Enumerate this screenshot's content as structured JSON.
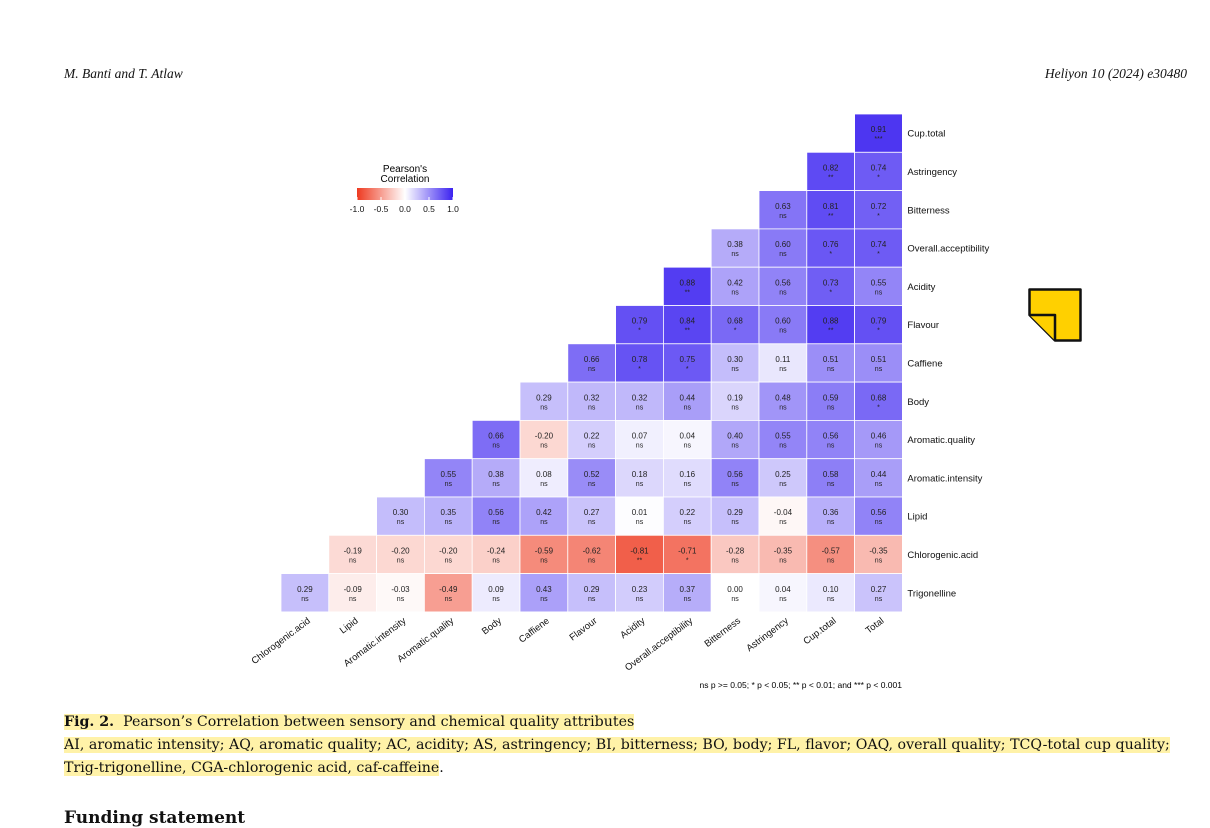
{
  "header": {
    "authors": "M. Banti and T. Atlaw",
    "journal": "Heliyon 10 (2024) e30480"
  },
  "figure": {
    "legend": {
      "title_line1": "Pearson's",
      "title_line2": "Correlation",
      "ticks": [
        "-1.0",
        "-0.5",
        "0.0",
        "0.5",
        "1.0"
      ]
    },
    "note": "ns p >= 0.05; * p < 0.05; ** p < 0.01; and *** p < 0.001",
    "sticky_note": "sticky-note-icon"
  },
  "chart_data": {
    "type": "heatmap",
    "row_labels": [
      "Cup.total",
      "Astringency",
      "Bitterness",
      "Overall.acceptibility",
      "Acidity",
      "Flavour",
      "Caffiene",
      "Body",
      "Aromatic.quality",
      "Aromatic.intensity",
      "Lipid",
      "Chlorogenic.acid",
      "Trigonelline"
    ],
    "col_labels": [
      "Chlorogenic.acid",
      "Lipid",
      "Aromatic.intensity",
      "Aromatic.quality",
      "Body",
      "Caffiene",
      "Flavour",
      "Acidity",
      "Overall.acceptibility",
      "Bitterness",
      "Astringency",
      "Cup.total",
      "Total"
    ],
    "color_scale": {
      "min": -1.0,
      "max": 1.0,
      "low_color": "#ee3a20",
      "mid_color": "#ffffff",
      "high_color": "#3b22f0"
    },
    "cells": [
      [
        [
          0.91,
          "***"
        ]
      ],
      [
        [
          0.82,
          "**"
        ],
        [
          0.74,
          "*"
        ]
      ],
      [
        [
          0.63,
          "ns"
        ],
        [
          0.81,
          "**"
        ],
        [
          0.72,
          "*"
        ]
      ],
      [
        [
          0.38,
          "ns"
        ],
        [
          0.6,
          "ns"
        ],
        [
          0.76,
          "*"
        ],
        [
          0.74,
          "*"
        ]
      ],
      [
        [
          0.88,
          "**"
        ],
        [
          0.42,
          "ns"
        ],
        [
          0.56,
          "ns"
        ],
        [
          0.73,
          "*"
        ],
        [
          0.55,
          "ns"
        ]
      ],
      [
        [
          0.79,
          "*"
        ],
        [
          0.84,
          "**"
        ],
        [
          0.68,
          "*"
        ],
        [
          0.6,
          "ns"
        ],
        [
          0.88,
          "**"
        ],
        [
          0.79,
          "*"
        ]
      ],
      [
        [
          0.66,
          "ns"
        ],
        [
          0.78,
          "*"
        ],
        [
          0.75,
          "*"
        ],
        [
          0.3,
          "ns"
        ],
        [
          0.11,
          "ns"
        ],
        [
          0.51,
          "ns"
        ],
        [
          0.51,
          "ns"
        ]
      ],
      [
        [
          0.29,
          "ns"
        ],
        [
          0.32,
          "ns"
        ],
        [
          0.32,
          "ns"
        ],
        [
          0.44,
          "ns"
        ],
        [
          0.19,
          "ns"
        ],
        [
          0.48,
          "ns"
        ],
        [
          0.59,
          "ns"
        ],
        [
          0.68,
          "*"
        ]
      ],
      [
        [
          0.66,
          "ns"
        ],
        [
          -0.2,
          "ns"
        ],
        [
          0.22,
          "ns"
        ],
        [
          0.07,
          "ns"
        ],
        [
          0.04,
          "ns"
        ],
        [
          0.4,
          "ns"
        ],
        [
          0.55,
          "ns"
        ],
        [
          0.56,
          "ns"
        ],
        [
          0.46,
          "ns"
        ]
      ],
      [
        [
          0.55,
          "ns"
        ],
        [
          0.38,
          "ns"
        ],
        [
          0.08,
          "ns"
        ],
        [
          0.52,
          "ns"
        ],
        [
          0.18,
          "ns"
        ],
        [
          0.16,
          "ns"
        ],
        [
          0.56,
          "ns"
        ],
        [
          0.25,
          "ns"
        ],
        [
          0.58,
          "ns"
        ],
        [
          0.44,
          "ns"
        ]
      ],
      [
        [
          0.3,
          "ns"
        ],
        [
          0.35,
          "ns"
        ],
        [
          0.56,
          "ns"
        ],
        [
          0.42,
          "ns"
        ],
        [
          0.27,
          "ns"
        ],
        [
          0.01,
          "ns"
        ],
        [
          0.22,
          "ns"
        ],
        [
          0.29,
          "ns"
        ],
        [
          -0.04,
          "ns"
        ],
        [
          0.36,
          "ns"
        ],
        [
          0.56,
          "ns"
        ]
      ],
      [
        [
          -0.19,
          "ns"
        ],
        [
          -0.2,
          "ns"
        ],
        [
          -0.2,
          "ns"
        ],
        [
          -0.24,
          "ns"
        ],
        [
          -0.59,
          "ns"
        ],
        [
          -0.62,
          "ns"
        ],
        [
          -0.81,
          "**"
        ],
        [
          -0.71,
          "*"
        ],
        [
          -0.28,
          "ns"
        ],
        [
          -0.35,
          "ns"
        ],
        [
          -0.57,
          "ns"
        ],
        [
          -0.35,
          "ns"
        ]
      ],
      [
        [
          0.29,
          "ns"
        ],
        [
          -0.09,
          "ns"
        ],
        [
          -0.03,
          "ns"
        ],
        [
          -0.49,
          "ns"
        ],
        [
          0.09,
          "ns"
        ],
        [
          0.43,
          "ns"
        ],
        [
          0.29,
          "ns"
        ],
        [
          0.23,
          "ns"
        ],
        [
          0.37,
          "ns"
        ],
        [
          0.0,
          "ns"
        ],
        [
          0.04,
          "ns"
        ],
        [
          0.1,
          "ns"
        ],
        [
          0.27,
          "ns"
        ]
      ]
    ]
  },
  "caption": {
    "label": "Fig. 2.",
    "title": "Pearson’s Correlation between sensory and chemical quality attributes",
    "body": "AI, aromatic intensity; AQ, aromatic quality; AC, acidity; AS, astringency; BI, bitterness; BO, body; FL, flavor; OAQ, overall quality; TCQ-total cup quality; Trig-trigonelline, CGA-chlorogenic acid, caf-caffeine",
    "end": "."
  },
  "next_section": "Funding statement"
}
